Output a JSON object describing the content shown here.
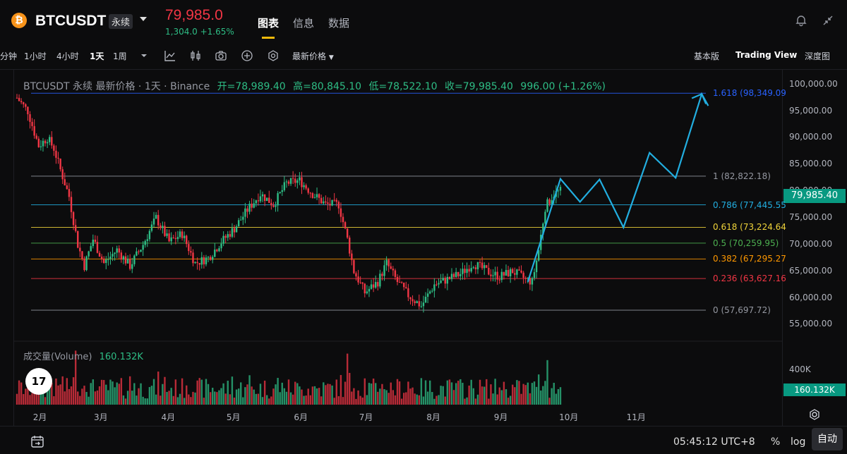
{
  "header": {
    "coin_icon": "bitcoin-icon",
    "coin_glyph": "₿",
    "symbol": "BTCUSDT",
    "contract": "永续",
    "last_price": "79,985.0",
    "change": "1,304.0 +1.65%",
    "tabs": [
      "图表",
      "信息",
      "数据"
    ],
    "active_tab": "图表",
    "icons": [
      "bell-icon",
      "collapse-icon"
    ]
  },
  "toolbar": {
    "intervals": [
      "分钟",
      "1小时",
      "4小时",
      "1天",
      "1周"
    ],
    "active_interval": "1天",
    "tools": [
      "interval-dropdown-icon",
      "indicators-icon",
      "candle-type-icon",
      "screenshot-icon",
      "add-icon",
      "settings-icon"
    ],
    "price_type": "最新价格",
    "views": [
      "基本版",
      "Trading View",
      "深度图"
    ],
    "active_view": "Trading View"
  },
  "legend": {
    "title": "BTCUSDT 永续 最新价格 · 1天 · Binance",
    "open": "开=78,989.40",
    "high": "高=80,845.10",
    "low": "低=78,522.10",
    "close": "收=79,985.40",
    "change": "996.00 (+1.26%)"
  },
  "volume": {
    "label": "成交量(Volume)",
    "value": "160.132K",
    "axis_label": "400K",
    "tag": "160.132K"
  },
  "current_price_tag": "79,985.40",
  "bottom": {
    "time": "05:45:12 UTC+8",
    "pct": "%",
    "log": "log",
    "auto": "自动",
    "calendar_icon": "calendar-icon",
    "settings_icon": "settings-icon"
  },
  "logo": "TradingView-logo",
  "logo_text": "17",
  "colors": {
    "up": "#2ebd85",
    "down": "#f23645",
    "accent": "#f0b90b",
    "projection": "#22aee0"
  },
  "chart_data": {
    "type": "candlestick",
    "y_ticks": [
      "100,000.00",
      "95,000.00",
      "90,000.00",
      "85,000.00",
      "80,000.00",
      "75,000.00",
      "70,000.00",
      "65,000.00",
      "60,000.00",
      "55,000.00"
    ],
    "ylim": [
      54000,
      100500
    ],
    "x_ticks": [
      "2月",
      "3月",
      "4月",
      "5月",
      "6月",
      "7月",
      "8月",
      "9月",
      "10月",
      "11月"
    ],
    "fib_levels": [
      {
        "label": "1.618 (98,349.09",
        "price": 98349.09,
        "color": "#2962ff"
      },
      {
        "label": "1 (82,822.18)",
        "price": 82822.18,
        "color": "#9598a1"
      },
      {
        "label": "0.786 (77,445.55",
        "price": 77445.55,
        "color": "#22aee0"
      },
      {
        "label": "0.618 (73,224.64",
        "price": 73224.64,
        "color": "#f0d43a"
      },
      {
        "label": "0.5 (70,259.95)",
        "price": 70259.95,
        "color": "#4caf50"
      },
      {
        "label": "0.382 (67,295.27",
        "price": 67295.27,
        "color": "#ff9800"
      },
      {
        "label": "0.236 (63,627.16",
        "price": 63627.16,
        "color": "#f23645"
      },
      {
        "label": "0 (57,697.72)",
        "price": 57697.72,
        "color": "#9598a1"
      }
    ],
    "price_path": [
      {
        "day": 0,
        "price": 97500
      },
      {
        "day": 5,
        "price": 95000
      },
      {
        "day": 8,
        "price": 91000
      },
      {
        "day": 10,
        "price": 88500
      },
      {
        "day": 14,
        "price": 90000
      },
      {
        "day": 17,
        "price": 88000
      },
      {
        "day": 20,
        "price": 84000
      },
      {
        "day": 24,
        "price": 79000
      },
      {
        "day": 28,
        "price": 70000
      },
      {
        "day": 31,
        "price": 66000
      },
      {
        "day": 35,
        "price": 71000
      },
      {
        "day": 40,
        "price": 66500
      },
      {
        "day": 46,
        "price": 69000
      },
      {
        "day": 52,
        "price": 66000
      },
      {
        "day": 58,
        "price": 70000
      },
      {
        "day": 64,
        "price": 75000
      },
      {
        "day": 70,
        "price": 70500
      },
      {
        "day": 76,
        "price": 72000
      },
      {
        "day": 82,
        "price": 66500
      },
      {
        "day": 88,
        "price": 67500
      },
      {
        "day": 94,
        "price": 70500
      },
      {
        "day": 100,
        "price": 73000
      },
      {
        "day": 106,
        "price": 76500
      },
      {
        "day": 112,
        "price": 79500
      },
      {
        "day": 118,
        "price": 77500
      },
      {
        "day": 124,
        "price": 81500
      },
      {
        "day": 130,
        "price": 82000
      },
      {
        "day": 136,
        "price": 79500
      },
      {
        "day": 142,
        "price": 77500
      },
      {
        "day": 148,
        "price": 77500
      },
      {
        "day": 152,
        "price": 71000
      },
      {
        "day": 155,
        "price": 65000
      },
      {
        "day": 160,
        "price": 61000
      },
      {
        "day": 166,
        "price": 63000
      },
      {
        "day": 170,
        "price": 66500
      },
      {
        "day": 175,
        "price": 63000
      },
      {
        "day": 180,
        "price": 60500
      },
      {
        "day": 186,
        "price": 58500
      },
      {
        "day": 192,
        "price": 62500
      },
      {
        "day": 198,
        "price": 63500
      },
      {
        "day": 204,
        "price": 64500
      },
      {
        "day": 210,
        "price": 66500
      },
      {
        "day": 216,
        "price": 65000
      },
      {
        "day": 222,
        "price": 64000
      },
      {
        "day": 228,
        "price": 65000
      },
      {
        "day": 234,
        "price": 63500
      },
      {
        "day": 237,
        "price": 63000
      },
      {
        "day": 240,
        "price": 69000
      },
      {
        "day": 243,
        "price": 77000
      },
      {
        "day": 247,
        "price": 79500
      },
      {
        "day": 250,
        "price": 80000
      }
    ],
    "projection": [
      {
        "day": 235,
        "price": 63000
      },
      {
        "day": 250,
        "price": 82300
      },
      {
        "day": 259,
        "price": 78000
      },
      {
        "day": 268,
        "price": 82200
      },
      {
        "day": 279,
        "price": 73200
      },
      {
        "day": 291,
        "price": 87200
      },
      {
        "day": 303,
        "price": 82500
      },
      {
        "day": 315,
        "price": 98200
      },
      {
        "day": 318,
        "price": 96000
      }
    ]
  }
}
